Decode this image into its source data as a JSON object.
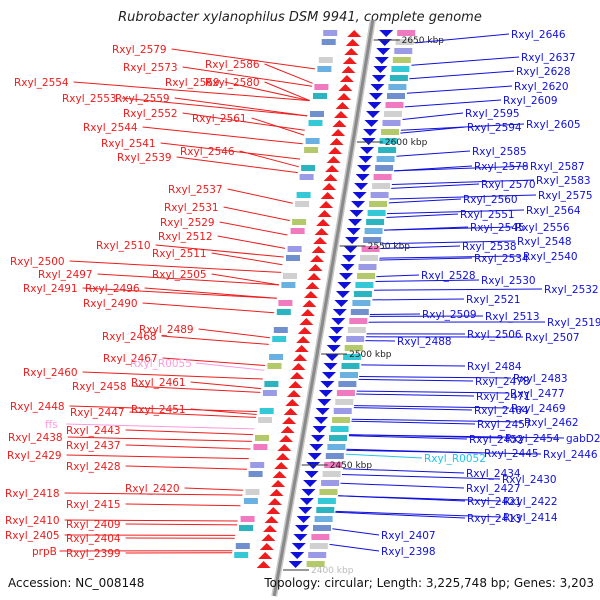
{
  "header": {
    "title": "Rubrobacter xylanophilus DSM 9941, complete genome"
  },
  "footer": {
    "accession": "Accession: NC_008148",
    "summary": "Topology: circular; Length: 3,225,748 bp; Genes: 3,203"
  },
  "colors": {
    "left_gene": "#ee1c1c",
    "right_gene": "#1010dd",
    "rna_left": "#ff9adf",
    "rna_right": "#22c6e8",
    "backbone": "#8a8a8a",
    "tick": "#1a8a1a"
  },
  "kbp_markers": [
    {
      "label": "2650 kbp"
    },
    {
      "label": "2600 kbp"
    },
    {
      "label": "2550 kbp"
    },
    {
      "label": "2500 kbp"
    },
    {
      "label": "2450 kbp"
    },
    {
      "label": "2400 kbp"
    }
  ],
  "left_labels": [
    {
      "text": "Rxyl_2579",
      "kind": "cds"
    },
    {
      "text": "Rxyl_2586",
      "kind": "cds"
    },
    {
      "text": "Rxyl_2573",
      "kind": "cds"
    },
    {
      "text": "Rxyl_2569",
      "kind": "cds"
    },
    {
      "text": "Rxyl_2580",
      "kind": "cds"
    },
    {
      "text": "Rxyl_2554",
      "kind": "cds"
    },
    {
      "text": "Rxyl_2553",
      "kind": "cds"
    },
    {
      "text": "Rxyl_2559",
      "kind": "cds"
    },
    {
      "text": "Rxyl_2552",
      "kind": "cds"
    },
    {
      "text": "Rxyl_2561",
      "kind": "cds"
    },
    {
      "text": "Rxyl_2544",
      "kind": "cds"
    },
    {
      "text": "Rxyl_2541",
      "kind": "cds"
    },
    {
      "text": "Rxyl_2546",
      "kind": "cds"
    },
    {
      "text": "Rxyl_2539",
      "kind": "cds"
    },
    {
      "text": "Rxyl_2537",
      "kind": "cds"
    },
    {
      "text": "Rxyl_2531",
      "kind": "cds"
    },
    {
      "text": "Rxyl_2529",
      "kind": "cds"
    },
    {
      "text": "Rxyl_2512",
      "kind": "cds"
    },
    {
      "text": "Rxyl_2510",
      "kind": "cds"
    },
    {
      "text": "Rxyl_2511",
      "kind": "cds"
    },
    {
      "text": "Rxyl_2500",
      "kind": "cds"
    },
    {
      "text": "Rxyl_2497",
      "kind": "cds"
    },
    {
      "text": "Rxyl_2505",
      "kind": "cds"
    },
    {
      "text": "Rxyl_2491",
      "kind": "cds"
    },
    {
      "text": "Rxyl_2496",
      "kind": "cds"
    },
    {
      "text": "Rxyl_2490",
      "kind": "cds"
    },
    {
      "text": "Rxyl_2489",
      "kind": "cds"
    },
    {
      "text": "Rxyl_2468",
      "kind": "cds"
    },
    {
      "text": "Rxyl_2467",
      "kind": "cds"
    },
    {
      "text": "Rxyl_R0055",
      "kind": "rna"
    },
    {
      "text": "Rxyl_2460",
      "kind": "cds"
    },
    {
      "text": "Rxyl_2461",
      "kind": "cds"
    },
    {
      "text": "Rxyl_2458",
      "kind": "cds"
    },
    {
      "text": "Rxyl_2448",
      "kind": "cds"
    },
    {
      "text": "Rxyl_2451",
      "kind": "cds"
    },
    {
      "text": "Rxyl_2447",
      "kind": "cds"
    },
    {
      "text": "ffs",
      "kind": "rna"
    },
    {
      "text": "Rxyl_2443",
      "kind": "cds"
    },
    {
      "text": "Rxyl_2438",
      "kind": "cds"
    },
    {
      "text": "Rxyl_2437",
      "kind": "cds"
    },
    {
      "text": "Rxyl_2429",
      "kind": "cds"
    },
    {
      "text": "Rxyl_2428",
      "kind": "cds"
    },
    {
      "text": "Rxyl_2420",
      "kind": "cds"
    },
    {
      "text": "Rxyl_2418",
      "kind": "cds"
    },
    {
      "text": "Rxyl_2415",
      "kind": "cds"
    },
    {
      "text": "Rxyl_2410",
      "kind": "cds"
    },
    {
      "text": "Rxyl_2409",
      "kind": "cds"
    },
    {
      "text": "Rxyl_2405",
      "kind": "cds"
    },
    {
      "text": "Rxyl_2404",
      "kind": "cds"
    },
    {
      "text": "prpB",
      "kind": "cds"
    },
    {
      "text": "Rxyl_2399",
      "kind": "cds"
    }
  ],
  "right_labels": [
    {
      "text": "Rxyl_2646",
      "kind": "cds"
    },
    {
      "text": "Rxyl_2637",
      "kind": "cds"
    },
    {
      "text": "Rxyl_2628",
      "kind": "cds"
    },
    {
      "text": "Rxyl_2620",
      "kind": "cds"
    },
    {
      "text": "Rxyl_2609",
      "kind": "cds"
    },
    {
      "text": "Rxyl_2595",
      "kind": "cds"
    },
    {
      "text": "Rxyl_2605",
      "kind": "cds"
    },
    {
      "text": "Rxyl_2594",
      "kind": "cds"
    },
    {
      "text": "Rxyl_2585",
      "kind": "cds"
    },
    {
      "text": "Rxyl_2578",
      "kind": "cds"
    },
    {
      "text": "Rxyl_2587",
      "kind": "cds"
    },
    {
      "text": "Rxyl_2570",
      "kind": "cds"
    },
    {
      "text": "Rxyl_2583",
      "kind": "cds"
    },
    {
      "text": "Rxyl_2575",
      "kind": "cds"
    },
    {
      "text": "Rxyl_2560",
      "kind": "cds"
    },
    {
      "text": "Rxyl_2564",
      "kind": "cds"
    },
    {
      "text": "Rxyl_2551",
      "kind": "cds"
    },
    {
      "text": "Rxyl_2545",
      "kind": "cds"
    },
    {
      "text": "Rxyl_2556",
      "kind": "cds"
    },
    {
      "text": "Rxyl_2548",
      "kind": "cds"
    },
    {
      "text": "Rxyl_2538",
      "kind": "cds"
    },
    {
      "text": "Rxyl_2534",
      "kind": "cds"
    },
    {
      "text": "Rxyl_2540",
      "kind": "cds"
    },
    {
      "text": "Rxyl_2528",
      "kind": "cds"
    },
    {
      "text": "Rxyl_2530",
      "kind": "cds"
    },
    {
      "text": "Rxyl_2532",
      "kind": "cds"
    },
    {
      "text": "Rxyl_2521",
      "kind": "cds"
    },
    {
      "text": "Rxyl_2509",
      "kind": "cds"
    },
    {
      "text": "Rxyl_2513",
      "kind": "cds"
    },
    {
      "text": "Rxyl_2519",
      "kind": "cds"
    },
    {
      "text": "Rxyl_2506",
      "kind": "cds"
    },
    {
      "text": "Rxyl_2507",
      "kind": "cds"
    },
    {
      "text": "Rxyl_2488",
      "kind": "cds"
    },
    {
      "text": "Rxyl_2484",
      "kind": "cds"
    },
    {
      "text": "Rxyl_2478",
      "kind": "cds"
    },
    {
      "text": "Rxyl_2483",
      "kind": "cds"
    },
    {
      "text": "Rxyl_2477",
      "kind": "cds"
    },
    {
      "text": "Rxyl_2471",
      "kind": "cds"
    },
    {
      "text": "Rxyl_2469",
      "kind": "cds"
    },
    {
      "text": "Rxyl_2464",
      "kind": "cds"
    },
    {
      "text": "Rxyl_2462",
      "kind": "cds"
    },
    {
      "text": "Rxyl_2457",
      "kind": "cds"
    },
    {
      "text": "Rxyl_2454",
      "kind": "cds"
    },
    {
      "text": "gabD2",
      "kind": "cds"
    },
    {
      "text": "Rxyl_2452",
      "kind": "cds"
    },
    {
      "text": "Rxyl_2445",
      "kind": "cds"
    },
    {
      "text": "Rxyl_2446",
      "kind": "cds"
    },
    {
      "text": "Rxyl_R0052",
      "kind": "rna"
    },
    {
      "text": "Rxyl_2434",
      "kind": "cds"
    },
    {
      "text": "Rxyl_2430",
      "kind": "cds"
    },
    {
      "text": "Rxyl_2427",
      "kind": "cds"
    },
    {
      "text": "Rxyl_2421",
      "kind": "cds"
    },
    {
      "text": "Rxyl_2422",
      "kind": "cds"
    },
    {
      "text": "Rxyl_2413",
      "kind": "cds"
    },
    {
      "text": "Rxyl_2414",
      "kind": "cds"
    },
    {
      "text": "Rxyl_2407",
      "kind": "cds"
    },
    {
      "text": "Rxyl_2398",
      "kind": "cds"
    }
  ]
}
